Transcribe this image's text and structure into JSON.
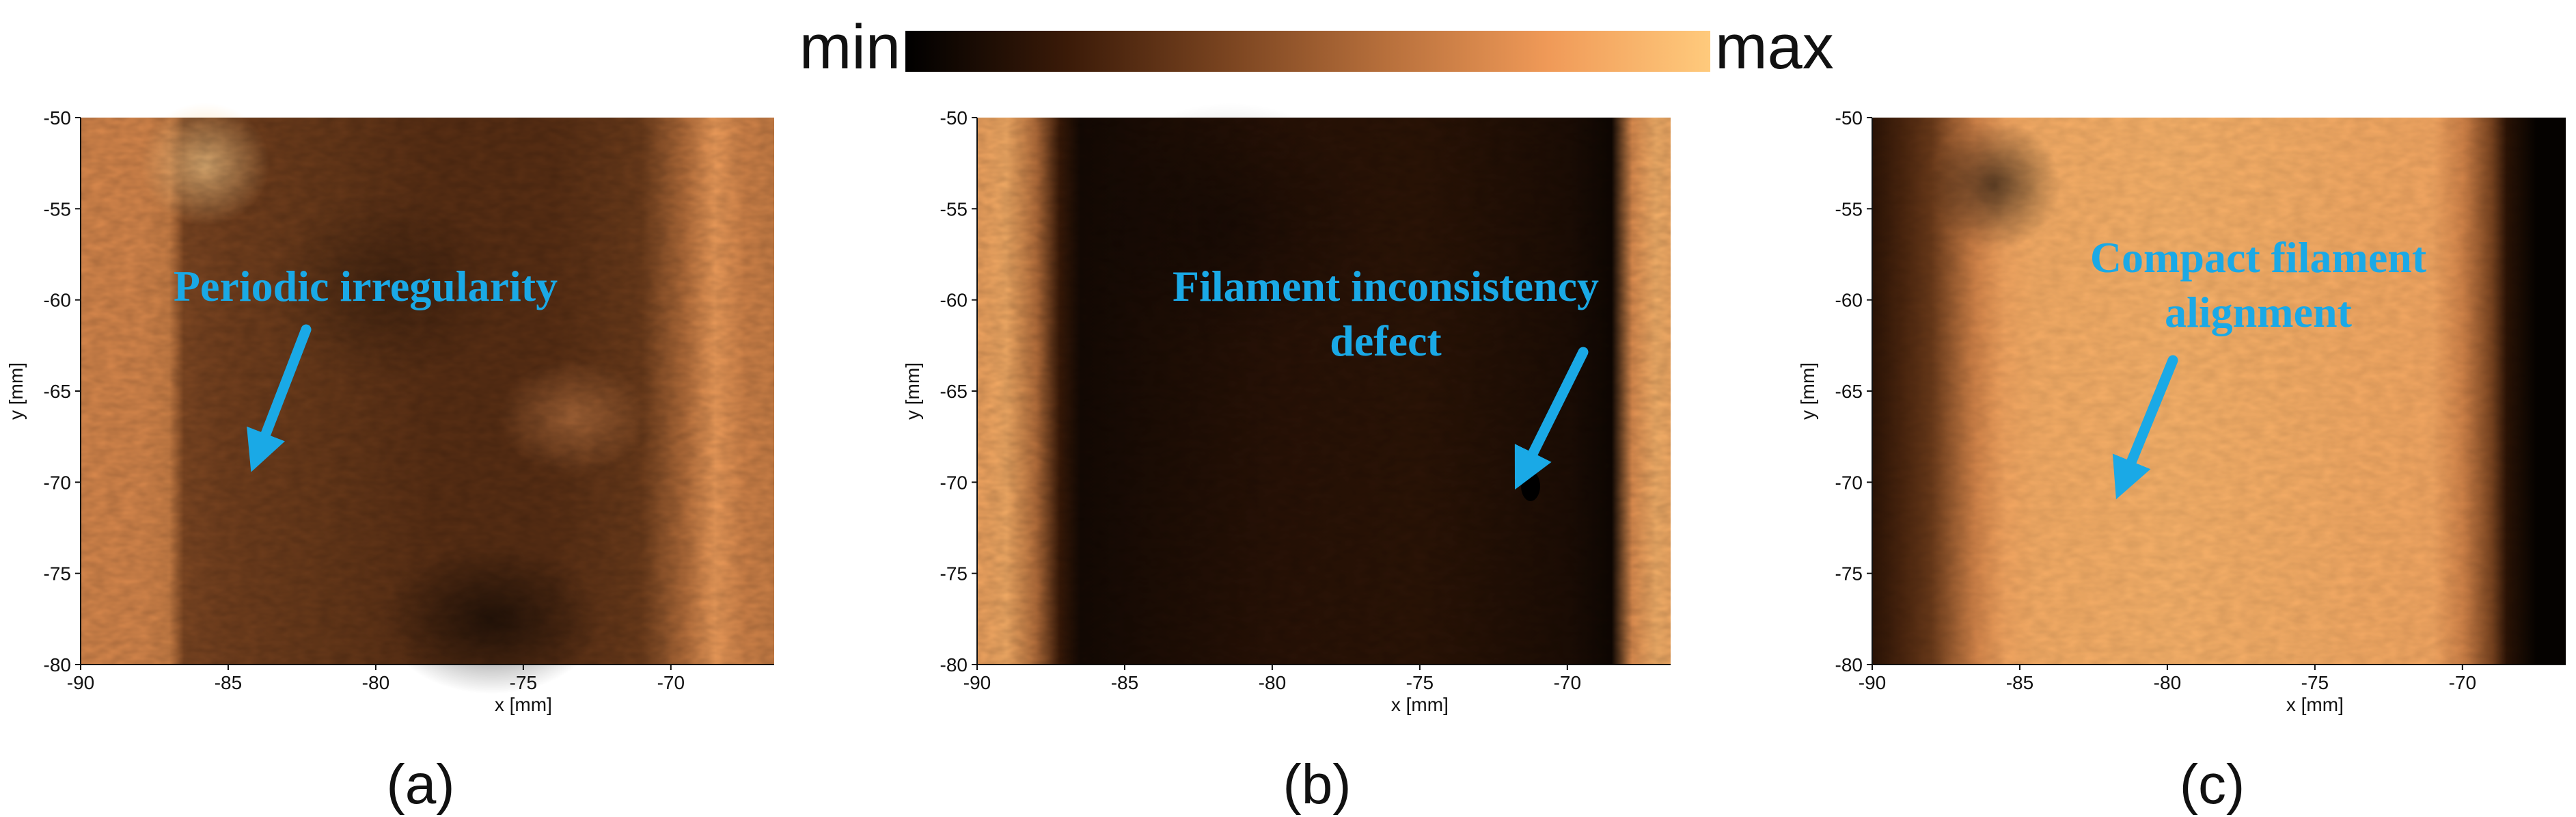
{
  "colorbar": {
    "min_label": "min",
    "max_label": "max",
    "colors": [
      "#000000",
      "#3a1a08",
      "#7a4420",
      "#b8703c",
      "#f09a58",
      "#ffca7c"
    ]
  },
  "colors": {
    "annotation": "#1aa9e6",
    "axis": "#111111"
  },
  "chart_data": [
    {
      "type": "heatmap",
      "panel_label": "(a)",
      "xlabel": "x [mm]",
      "ylabel": "y [mm]",
      "xlim": [
        -90,
        -66.5
      ],
      "ylim": [
        -80,
        -50
      ],
      "x_ticks": [
        -90,
        -85,
        -80,
        -75,
        -70
      ],
      "y_ticks": [
        -50,
        -55,
        -60,
        -65,
        -70,
        -75,
        -80
      ],
      "x_tick_labels": [
        "-90",
        "-85",
        "-80",
        "-75",
        "-70"
      ],
      "y_tick_labels": [
        "-50",
        "-55",
        "-60",
        "-65",
        "-70",
        "-75",
        "-80"
      ],
      "intensity_profile_x": [
        -90,
        -88,
        -87,
        -86.5,
        -85,
        -82,
        -78,
        -74,
        -71,
        -69.5,
        -68.5,
        -67.5,
        -66.5
      ],
      "intensity_profile": [
        0.72,
        0.72,
        0.68,
        0.42,
        0.38,
        0.35,
        0.3,
        0.3,
        0.36,
        0.6,
        0.82,
        0.7,
        0.68
      ],
      "annotation": {
        "lines": [
          "Periodic irregularity"
        ],
        "arrow_to": [
          -84,
          -68.5
        ]
      }
    },
    {
      "type": "heatmap",
      "panel_label": "(b)",
      "xlabel": "x [mm]",
      "ylabel": "y [mm]",
      "xlim": [
        -90,
        -66.5
      ],
      "ylim": [
        -80,
        -50
      ],
      "x_ticks": [
        -90,
        -85,
        -80,
        -75,
        -70
      ],
      "y_ticks": [
        -50,
        -55,
        -60,
        -65,
        -70,
        -75,
        -80
      ],
      "x_tick_labels": [
        "-90",
        "-85",
        "-80",
        "-75",
        "-70"
      ],
      "y_tick_labels": [
        "-50",
        "-55",
        "-60",
        "-65",
        "-70",
        "-75",
        "-80"
      ],
      "intensity_profile_x": [
        -90,
        -89,
        -88,
        -87.2,
        -86.5,
        -84,
        -80,
        -75,
        -70,
        -68.5,
        -67.8,
        -67,
        -66.5
      ],
      "intensity_profile": [
        0.85,
        0.88,
        0.6,
        0.2,
        0.07,
        0.1,
        0.14,
        0.15,
        0.1,
        0.05,
        0.75,
        0.9,
        0.88
      ],
      "annotation": {
        "lines": [
          "Filament inconsistency",
          "defect"
        ],
        "arrow_to": [
          -71.5,
          -69.5
        ]
      }
    },
    {
      "type": "heatmap",
      "panel_label": "(c)",
      "xlabel": "x [mm]",
      "ylabel": "y [mm]",
      "xlim": [
        -90,
        -66.5
      ],
      "ylim": [
        -80,
        -50
      ],
      "x_ticks": [
        -90,
        -85,
        -80,
        -75,
        -70
      ],
      "y_ticks": [
        -50,
        -55,
        -60,
        -65,
        -70,
        -75,
        -80
      ],
      "x_tick_labels": [
        "-90",
        "-85",
        "-80",
        "-75",
        "-70"
      ],
      "y_tick_labels": [
        "-50",
        "-55",
        "-60",
        "-65",
        "-70",
        "-75",
        "-80"
      ],
      "intensity_profile_x": [
        -90,
        -89,
        -88,
        -86.5,
        -85.5,
        -84.5,
        -80,
        -75,
        -71,
        -70,
        -69,
        -68.5,
        -67.5,
        -66.5
      ],
      "intensity_profile": [
        0.15,
        0.25,
        0.35,
        0.7,
        0.85,
        0.88,
        0.9,
        0.88,
        0.86,
        0.7,
        0.4,
        0.15,
        0.02,
        0.02
      ],
      "annotation": {
        "lines": [
          "Compact filament",
          "alignment"
        ],
        "arrow_to": [
          -81.5,
          -70
        ]
      }
    }
  ]
}
